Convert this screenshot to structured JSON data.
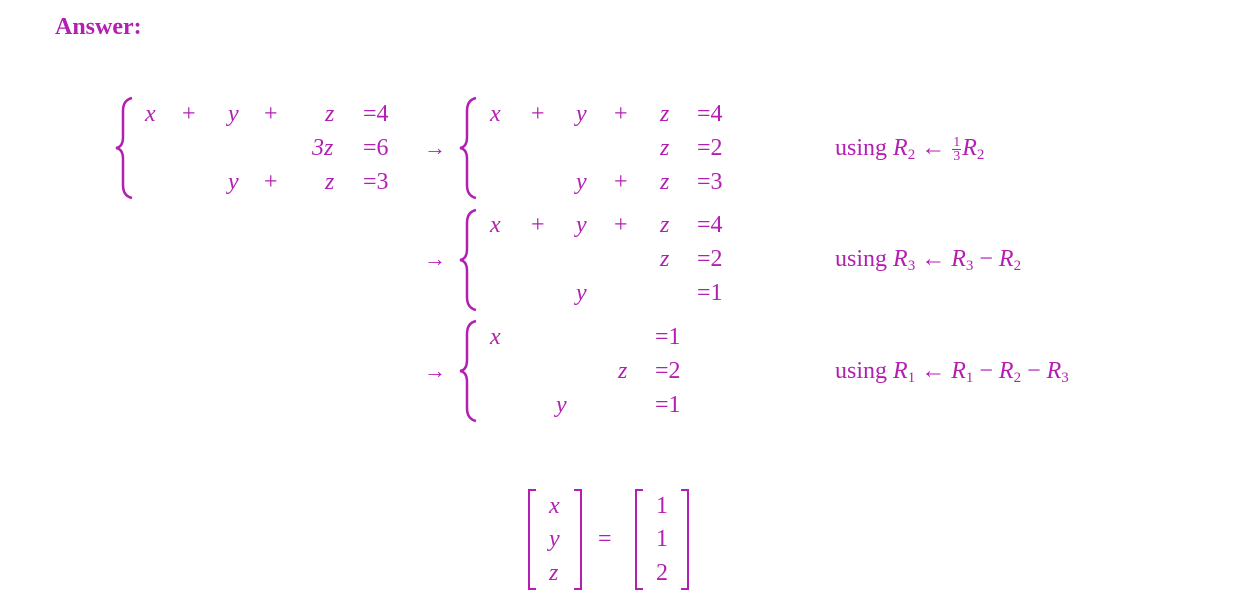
{
  "heading": "Answer:",
  "system0": {
    "row1": {
      "x": "x",
      "p1": "+",
      "y": "y",
      "p2": "+",
      "z": "z",
      "rhs": "=4"
    },
    "row2": {
      "z": "3z",
      "rhs": "=6"
    },
    "row3": {
      "y": "y",
      "p2": "+",
      "z": "z",
      "rhs": "=3"
    }
  },
  "arrow": "→",
  "system1": {
    "row1": {
      "x": "x",
      "p1": "+",
      "y": "y",
      "p2": "+",
      "z": "z",
      "rhs": "=4"
    },
    "row2": {
      "z": "z",
      "rhs": "=2"
    },
    "row3": {
      "y": "y",
      "p2": "+",
      "z": "z",
      "rhs": "=3"
    }
  },
  "system2": {
    "row1": {
      "x": "x",
      "p1": "+",
      "y": "y",
      "p2": "+",
      "z": "z",
      "rhs": "=4"
    },
    "row2": {
      "z": "z",
      "rhs": "=2"
    },
    "row3": {
      "y": "y",
      "rhs": "=1"
    }
  },
  "system3": {
    "row1": {
      "x": "x",
      "rhs": "=1"
    },
    "row2": {
      "z": "z",
      "rhs": "=2"
    },
    "row3": {
      "y": "y",
      "rhs": "=1"
    }
  },
  "notes": {
    "using": "using",
    "r": "R",
    "sub1": "1",
    "sub2": "2",
    "sub3": "3",
    "arrow_left": "←",
    "minus": "−",
    "frac_num": "1",
    "frac_den": "3"
  },
  "result": {
    "vars": [
      "x",
      "y",
      "z"
    ],
    "equals": "=",
    "values": [
      "1",
      "1",
      "2"
    ]
  }
}
